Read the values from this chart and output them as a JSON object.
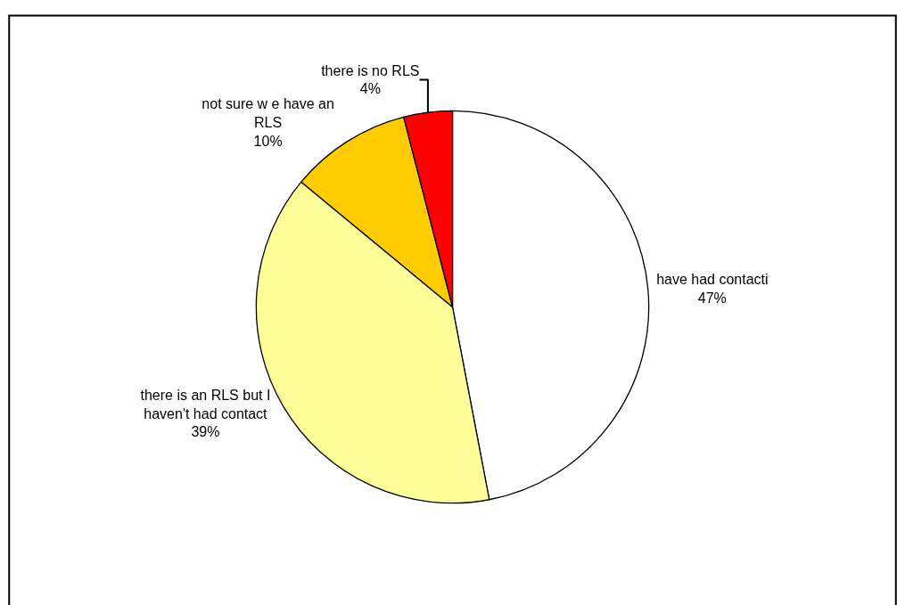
{
  "chart_data": {
    "type": "pie",
    "categories": [
      "have had contacti",
      "there is an RLS but I haven't had contact",
      "not sure w e have an RLS",
      "there is no RLS"
    ],
    "values": [
      47,
      39,
      10,
      4
    ],
    "value_labels": [
      "47%",
      "39%",
      "10%",
      "4%"
    ],
    "colors": [
      "#ffffff",
      "#ffff99",
      "#ffcc00",
      "#ff0000"
    ],
    "legend": false
  }
}
